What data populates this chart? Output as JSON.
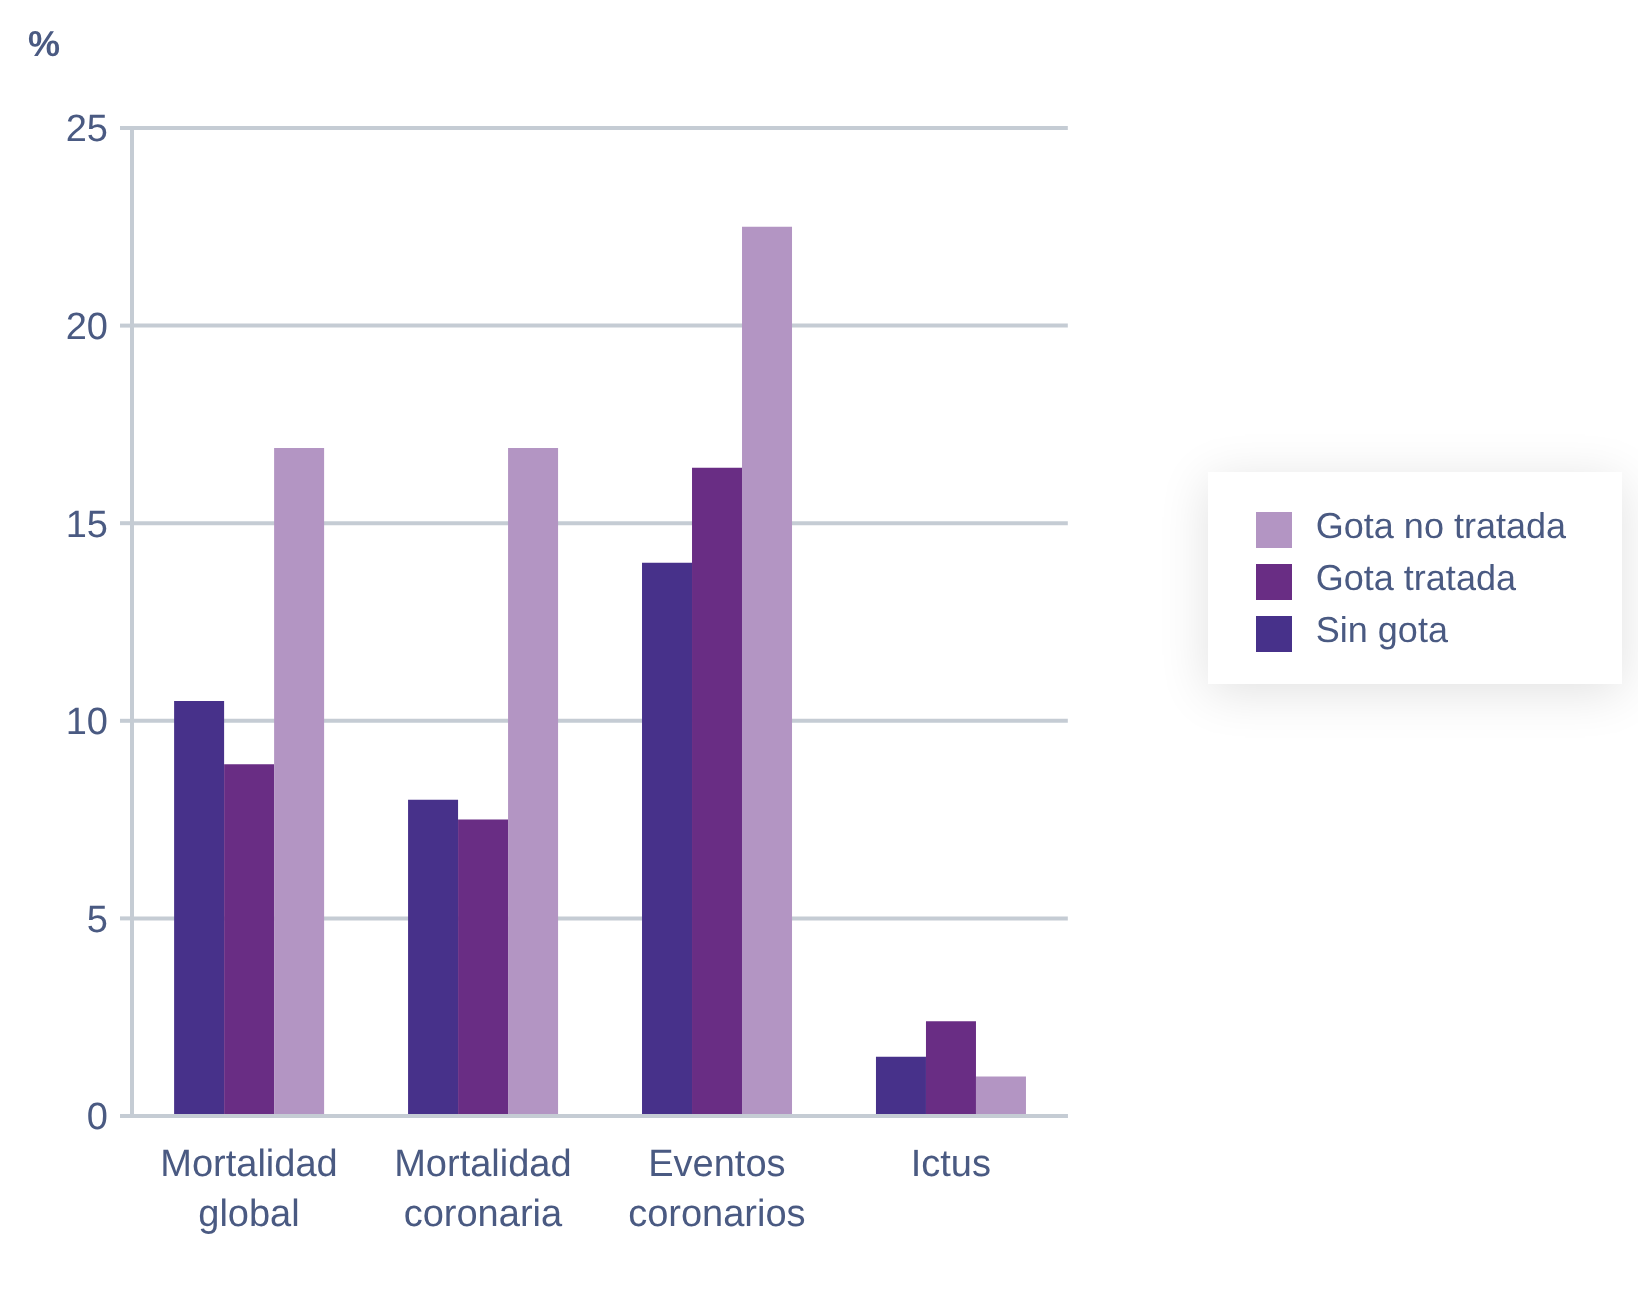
{
  "chart_data": {
    "type": "bar",
    "ylabel": "%",
    "categories": [
      "Mortalidad global",
      "Mortalidad coronaria",
      "Eventos coronarios",
      "Ictus"
    ],
    "series": [
      {
        "name": "Sin gota",
        "color": "#47318a",
        "values": [
          10.5,
          8.0,
          14.0,
          1.5
        ]
      },
      {
        "name": "Gota tratada",
        "color": "#692d84",
        "values": [
          8.9,
          7.5,
          16.4,
          2.4
        ]
      },
      {
        "name": "Gota no tratada",
        "color": "#b395c3",
        "values": [
          16.9,
          16.9,
          22.5,
          1.0
        ]
      }
    ],
    "ylim": [
      0,
      25
    ],
    "yticks": [
      0,
      5,
      10,
      15,
      20,
      25
    ],
    "grid": "y",
    "legend": "right"
  }
}
